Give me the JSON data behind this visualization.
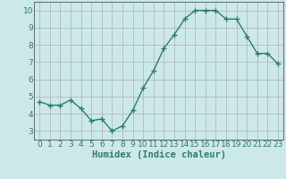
{
  "x": [
    0,
    1,
    2,
    3,
    4,
    5,
    6,
    7,
    8,
    9,
    10,
    11,
    12,
    13,
    14,
    15,
    16,
    17,
    18,
    19,
    20,
    21,
    22,
    23
  ],
  "y": [
    4.7,
    4.5,
    4.5,
    4.8,
    4.3,
    3.6,
    3.7,
    3.0,
    3.3,
    4.2,
    5.5,
    6.5,
    7.8,
    8.6,
    9.5,
    10.0,
    10.0,
    10.0,
    9.5,
    9.5,
    8.5,
    7.5,
    7.5,
    6.9
  ],
  "line_color": "#2e7d6e",
  "marker": "+",
  "marker_color": "#2e7d6e",
  "bg_color": "#cce8e8",
  "grid_color_major": "#b0b0b0",
  "grid_color_minor": "#d8d8d8",
  "xlabel": "Humidex (Indice chaleur)",
  "xlim": [
    -0.5,
    23.5
  ],
  "ylim": [
    2.5,
    10.5
  ],
  "yticks": [
    3,
    4,
    5,
    6,
    7,
    8,
    9,
    10
  ],
  "xticks": [
    0,
    1,
    2,
    3,
    4,
    5,
    6,
    7,
    8,
    9,
    10,
    11,
    12,
    13,
    14,
    15,
    16,
    17,
    18,
    19,
    20,
    21,
    22,
    23
  ],
  "xlabel_fontsize": 7.5,
  "tick_fontsize": 6.5,
  "line_width": 1.0,
  "marker_size": 4
}
